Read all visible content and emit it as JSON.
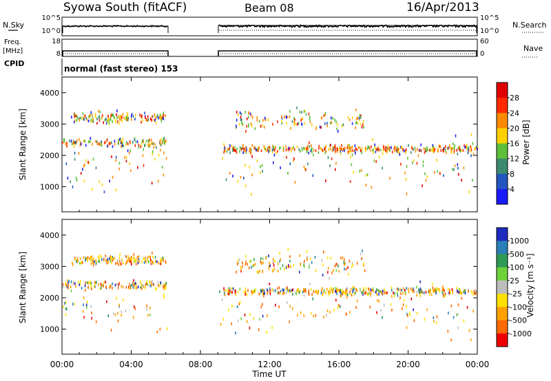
{
  "header": {
    "station": "Syowa South (fitACF)",
    "beam": "Beam 08",
    "date": "16/Apr/2013"
  },
  "noise_panel": {
    "left_label": "N.Sky",
    "right_label": "N.Search",
    "left_ticks": [
      "10^5",
      "10^0"
    ],
    "right_ticks": [
      "10^5",
      "10^0"
    ]
  },
  "freq_panel": {
    "left_label_1": "Freq.",
    "left_label_2": "[MHz]",
    "right_label": "Nave",
    "left_ticks": [
      "18",
      "8"
    ],
    "right_ticks": [
      "60",
      "0"
    ]
  },
  "cpid_panel": {
    "label": "CPID",
    "mode_text": "normal (fast stereo) 153"
  },
  "x_axis": {
    "label": "Time UT",
    "ticks": [
      "00:00",
      "04:00",
      "08:00",
      "12:00",
      "16:00",
      "20:00",
      "00:00"
    ]
  },
  "chart_data": [
    {
      "type": "heatmap",
      "name": "power",
      "ylabel": "Slant Range [km]",
      "yticks": [
        "1000",
        "2000",
        "3000",
        "4000"
      ],
      "ylim": [
        200,
        4500
      ],
      "xlim_hours": [
        0,
        24
      ],
      "data_gap_hours": [
        6.1,
        9.0
      ],
      "colorbar_label": "Power [dB]",
      "colorbar_ticks": [
        "4",
        "8",
        "12",
        "16",
        "20",
        "24",
        "28"
      ],
      "colorbar_colors": [
        "#1a1aff",
        "#2255c0",
        "#3c8a6e",
        "#5cbf3a",
        "#ffd000",
        "#ff8a00",
        "#ff2a00",
        "#e00000"
      ],
      "scatter_bands": [
        {
          "center_km": 3200,
          "spread_km": 120,
          "t0": 0.5,
          "t1": 6.0,
          "weight": 6
        },
        {
          "center_km": 2400,
          "spread_km": 100,
          "t0": 0.0,
          "t1": 6.0,
          "weight": 5
        },
        {
          "center_km": 2200,
          "spread_km": 90,
          "t0": 9.3,
          "t1": 24.0,
          "weight": 14
        },
        {
          "center_km": 3100,
          "spread_km": 250,
          "t0": 10.0,
          "t1": 17.5,
          "weight": 5
        },
        {
          "center_km": 1700,
          "spread_km": 600,
          "t0": 0.0,
          "t1": 24.0,
          "weight": 8
        }
      ]
    },
    {
      "type": "heatmap",
      "name": "velocity",
      "ylabel": "Slant Range [km]",
      "yticks": [
        "1000",
        "2000",
        "3000",
        "4000"
      ],
      "ylim": [
        200,
        4500
      ],
      "xlim_hours": [
        0,
        24
      ],
      "data_gap_hours": [
        6.1,
        9.0
      ],
      "colorbar_label": "Velocity [m s⁻¹]",
      "colorbar_ticks": [
        "1000",
        "500",
        "100",
        "25",
        "-25",
        "-100",
        "-500",
        "-1000"
      ],
      "colorbar_colors": [
        "#1e2cbf",
        "#2a7fb8",
        "#2e9a55",
        "#6ed13a",
        "#bdbdbd",
        "#ffe000",
        "#ffa200",
        "#ff6a00",
        "#ee0000"
      ],
      "scatter_bands": [
        {
          "center_km": 3200,
          "spread_km": 120,
          "t0": 0.5,
          "t1": 6.0,
          "weight": 6
        },
        {
          "center_km": 2400,
          "spread_km": 100,
          "t0": 0.0,
          "t1": 6.0,
          "weight": 5
        },
        {
          "center_km": 2200,
          "spread_km": 90,
          "t0": 9.3,
          "t1": 24.0,
          "weight": 14
        },
        {
          "center_km": 3100,
          "spread_km": 250,
          "t0": 10.0,
          "t1": 17.5,
          "weight": 5
        },
        {
          "center_km": 1700,
          "spread_km": 600,
          "t0": 0.0,
          "t1": 24.0,
          "weight": 8
        }
      ]
    }
  ]
}
